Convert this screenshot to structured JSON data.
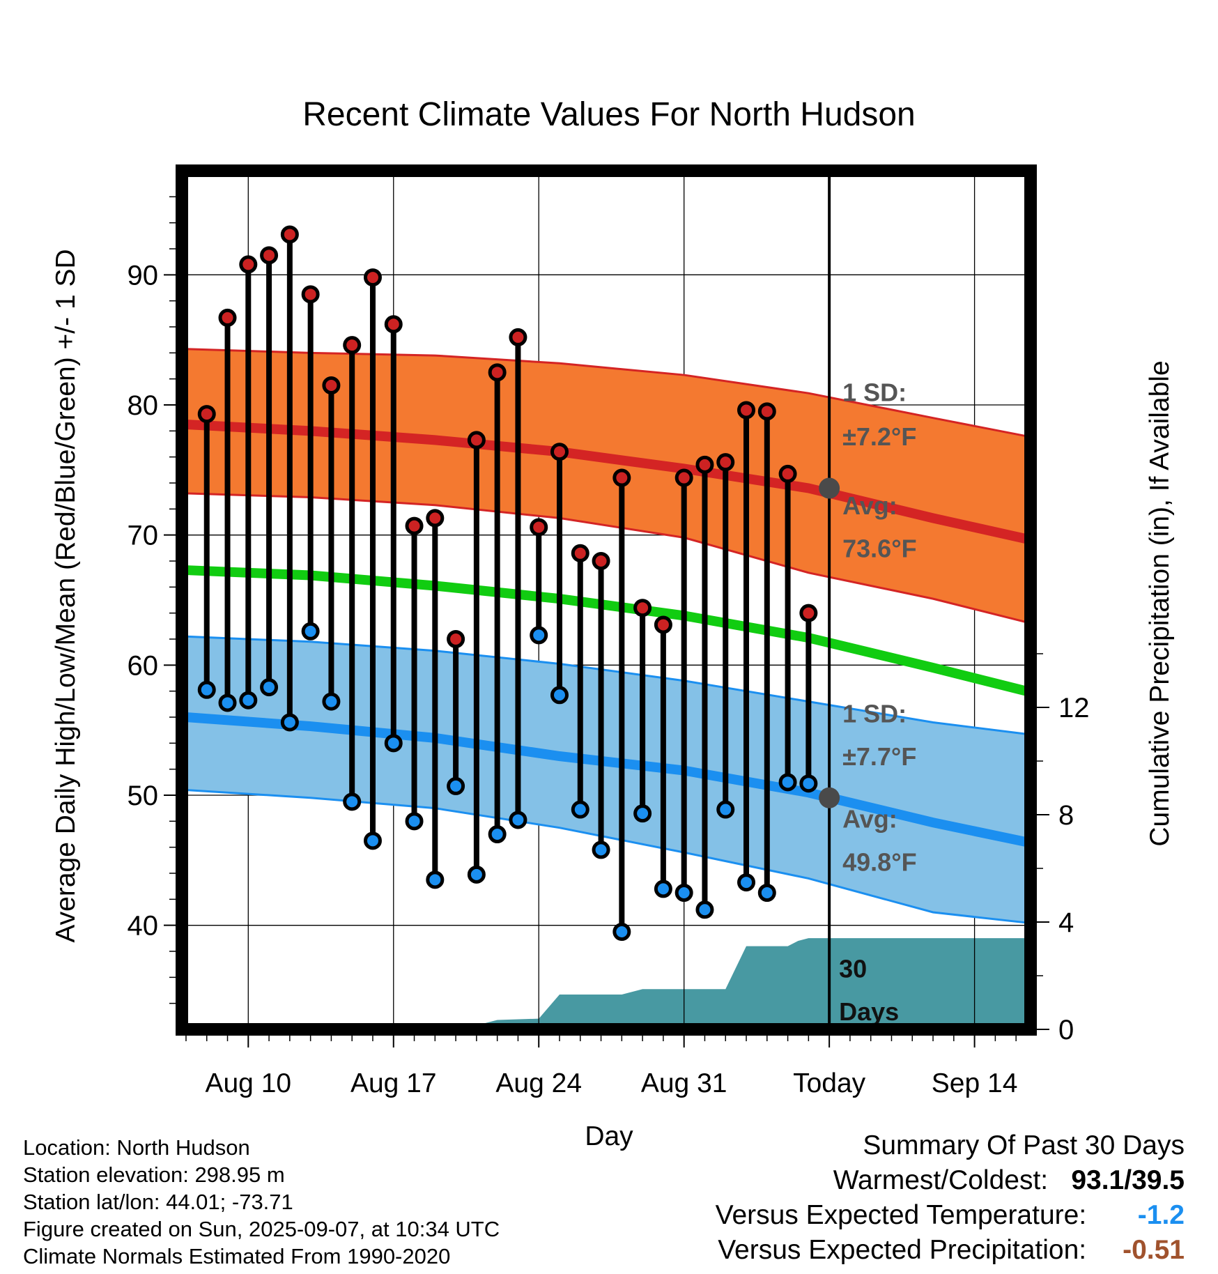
{
  "chart_data": {
    "type": "line",
    "title": "Recent Climate Values For North Hudson",
    "xlabel": "Day",
    "ylabel": "Average Daily High/Low/Mean (Red/Blue/Green) +/- 1 SD",
    "ylabel_right": "Cumulative Precipitation (in), If Available",
    "x_ticks": [
      {
        "day": 0,
        "label": "Aug 10"
      },
      {
        "day": 7,
        "label": "Aug 17"
      },
      {
        "day": 14,
        "label": "Aug 24"
      },
      {
        "day": 21,
        "label": "Aug 31"
      },
      {
        "day": 28,
        "label": "Today"
      },
      {
        "day": 35,
        "label": "Sep 14"
      }
    ],
    "xlim": [
      -3.2,
      37.7
    ],
    "ylim": [
      32,
      98
    ],
    "y_ticks": [
      40,
      50,
      60,
      70,
      80,
      90
    ],
    "y2lim": [
      0,
      32
    ],
    "y2_ticks": [
      0,
      4,
      8,
      12
    ],
    "today_day": 28,
    "daily_highs": [
      79.3,
      86.7,
      90.8,
      91.5,
      93.1,
      88.5,
      81.5,
      84.6,
      89.8,
      86.2,
      70.7,
      71.3,
      62.0,
      77.3,
      82.5,
      85.2,
      70.6,
      76.4,
      68.6,
      68.0,
      74.4,
      64.4,
      63.1,
      74.4,
      75.4,
      75.6,
      79.6,
      79.5,
      74.7,
      64.0
    ],
    "daily_lows": [
      58.1,
      57.1,
      57.3,
      58.3,
      55.6,
      62.6,
      57.2,
      49.5,
      46.5,
      54.0,
      48.0,
      43.5,
      50.7,
      43.9,
      47.0,
      48.1,
      62.3,
      57.7,
      48.9,
      45.8,
      39.5,
      48.6,
      42.8,
      42.5,
      41.2,
      48.9,
      43.3,
      42.5,
      51.0,
      50.9
    ],
    "normal_high": {
      "x": [
        -3,
        3,
        9,
        15,
        21,
        27,
        33,
        37.5
      ],
      "avg": [
        78.5,
        78.0,
        77.3,
        76.4,
        75.1,
        73.6,
        71.3,
        69.7
      ],
      "upper": [
        84.3,
        84.0,
        83.8,
        83.2,
        82.3,
        80.9,
        79.0,
        77.6
      ],
      "lower": [
        73.2,
        72.9,
        72.3,
        71.3,
        69.8,
        67.1,
        65.1,
        63.3
      ]
    },
    "normal_mean": {
      "x": [
        -3,
        3,
        9,
        15,
        21,
        27,
        33,
        37.5
      ],
      "values": [
        67.3,
        66.9,
        66.1,
        65.1,
        63.8,
        62.1,
        59.8,
        58.0
      ]
    },
    "normal_low": {
      "x": [
        -3,
        3,
        9,
        15,
        21,
        27,
        33,
        37.5
      ],
      "avg": [
        56.0,
        55.3,
        54.4,
        53.0,
        51.9,
        50.2,
        47.9,
        46.4
      ],
      "upper": [
        62.2,
        61.8,
        61.1,
        60.1,
        58.8,
        57.2,
        55.6,
        54.7
      ],
      "lower": [
        50.4,
        49.8,
        49.0,
        47.5,
        45.6,
        43.6,
        41.0,
        40.2
      ]
    },
    "cumulative_precip": {
      "x": [
        -2.0,
        2.3,
        5.0,
        8.0,
        11.0,
        12.0,
        14.0,
        15.0,
        18.0,
        19.0,
        20.0,
        23.0,
        24.0,
        26.0,
        26.5,
        27.0,
        28.0,
        37.7
      ],
      "values": [
        0.15,
        0.15,
        0.15,
        0.15,
        0.15,
        0.35,
        0.4,
        1.3,
        1.3,
        1.5,
        1.5,
        1.5,
        3.1,
        3.1,
        3.3,
        3.4,
        3.4,
        3.4
      ]
    },
    "annotations": {
      "high_sd": "1 SD:",
      "high_sd_value": "±7.2°F",
      "high_avg": "Avg:",
      "high_avg_value": "73.6°F",
      "low_sd": "1 SD:",
      "low_sd_value": "±7.7°F",
      "low_avg": "Avg:",
      "low_avg_value": "49.8°F",
      "days_number": "30",
      "days_word": "Days",
      "today_high_avg": 73.6,
      "today_low_avg": 49.8
    },
    "grid": true,
    "colors": {
      "high_band": "#f47930",
      "high_line": "#d42424",
      "mean_line": "#11cc11",
      "low_band": "#84c1e7",
      "low_line": "#1b8ff0",
      "precip": "#4899a2",
      "high_marker": "#cc2222",
      "low_marker": "#1b8ff0",
      "today_marker": "#4a4a4a",
      "annotation_text": "#555555"
    }
  },
  "metadata": {
    "location": "Location: North Hudson",
    "elevation": "Station elevation: 298.95 m",
    "latlon": "Station lat/lon: 44.01; -73.71",
    "created": "Figure created on Sun, 2025-09-07, at 10:34 UTC",
    "normals": "Climate Normals Estimated From 1990-2020"
  },
  "summary": {
    "heading": "Summary Of Past 30 Days",
    "extremes_label": "Warmest/Coldest:",
    "extremes_value": "93.1/39.5",
    "temp_label": "Versus Expected Temperature:",
    "temp_value": "-1.2",
    "temp_color": "#1b8ff0",
    "precip_label": "Versus Expected Precipitation:",
    "precip_value": "-0.51",
    "precip_color": "#a0522d"
  }
}
